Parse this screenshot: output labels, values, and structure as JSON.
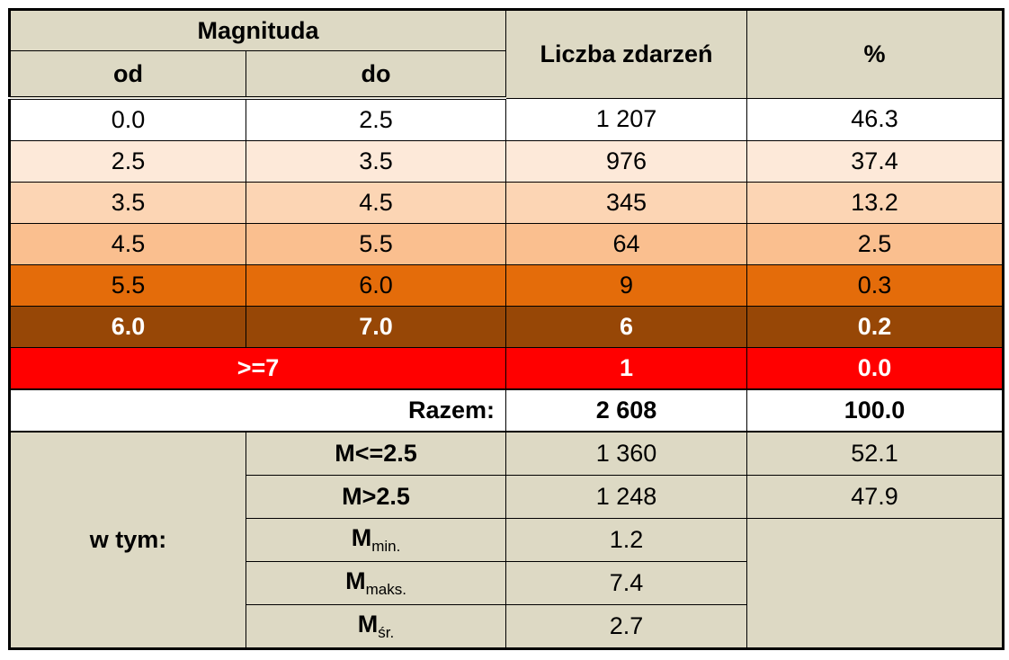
{
  "header": {
    "magnitude": "Magnituda",
    "from": "od",
    "to": "do",
    "count": "Liczba zdarzeń",
    "percent": "%"
  },
  "rows": [
    [
      "0.0",
      "2.5",
      "1 207",
      "46.3"
    ],
    [
      "2.5",
      "3.5",
      "976",
      "37.4"
    ],
    [
      "3.5",
      "4.5",
      "345",
      "13.2"
    ],
    [
      "4.5",
      "5.5",
      "64",
      "2.5"
    ],
    [
      "5.5",
      "6.0",
      "9",
      "0.3"
    ],
    [
      "6.0",
      "7.0",
      "6",
      "0.2"
    ]
  ],
  "top_row": {
    "label": ">=7",
    "count": "1",
    "percent": "0.0"
  },
  "total": {
    "label": "Razem:",
    "count": "2 608",
    "percent": "100.0"
  },
  "breakdown": {
    "label": "w tym:",
    "rows": [
      {
        "name": "M<=2.5",
        "count": "1 360",
        "percent": "52.1"
      },
      {
        "name": "M>2.5",
        "count": "1 248",
        "percent": "47.9"
      },
      {
        "name": "M",
        "sub": "min.",
        "count": "1.2"
      },
      {
        "name": "M",
        "sub": "maks.",
        "count": "7.4"
      },
      {
        "name": "M",
        "sub": "śr.",
        "count": "2.7"
      }
    ]
  }
}
